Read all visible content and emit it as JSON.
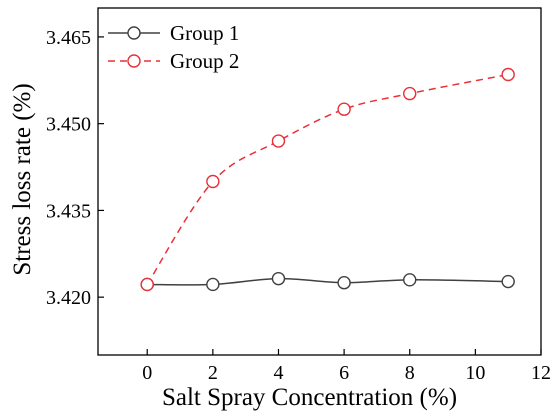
{
  "chart_data": {
    "type": "line",
    "title": "",
    "xlabel": "Salt Spray Concentration (%)",
    "ylabel": "Stress loss rate (%)",
    "xlim": [
      -1.5,
      12
    ],
    "ylim": [
      3.41,
      3.47
    ],
    "xticks": [
      0,
      2,
      4,
      6,
      8,
      10,
      12
    ],
    "yticks": [
      3.42,
      3.435,
      3.45,
      3.465
    ],
    "ytick_labels": [
      "3.420",
      "3.435",
      "3.450",
      "3.465"
    ],
    "legend_position": "top-left",
    "series": [
      {
        "name": "Group 1",
        "color": "#404040",
        "line_style": "solid",
        "marker": "open-circle",
        "x": [
          0,
          2,
          4,
          6,
          8,
          11
        ],
        "y": [
          3.4222,
          3.4222,
          3.4232,
          3.4225,
          3.423,
          3.4227
        ]
      },
      {
        "name": "Group 2",
        "color": "#e8303a",
        "line_style": "dashed",
        "marker": "open-circle",
        "x": [
          0,
          2,
          4,
          6,
          8,
          11
        ],
        "y": [
          3.4222,
          3.44,
          3.447,
          3.4525,
          3.4552,
          3.4585
        ]
      }
    ]
  }
}
